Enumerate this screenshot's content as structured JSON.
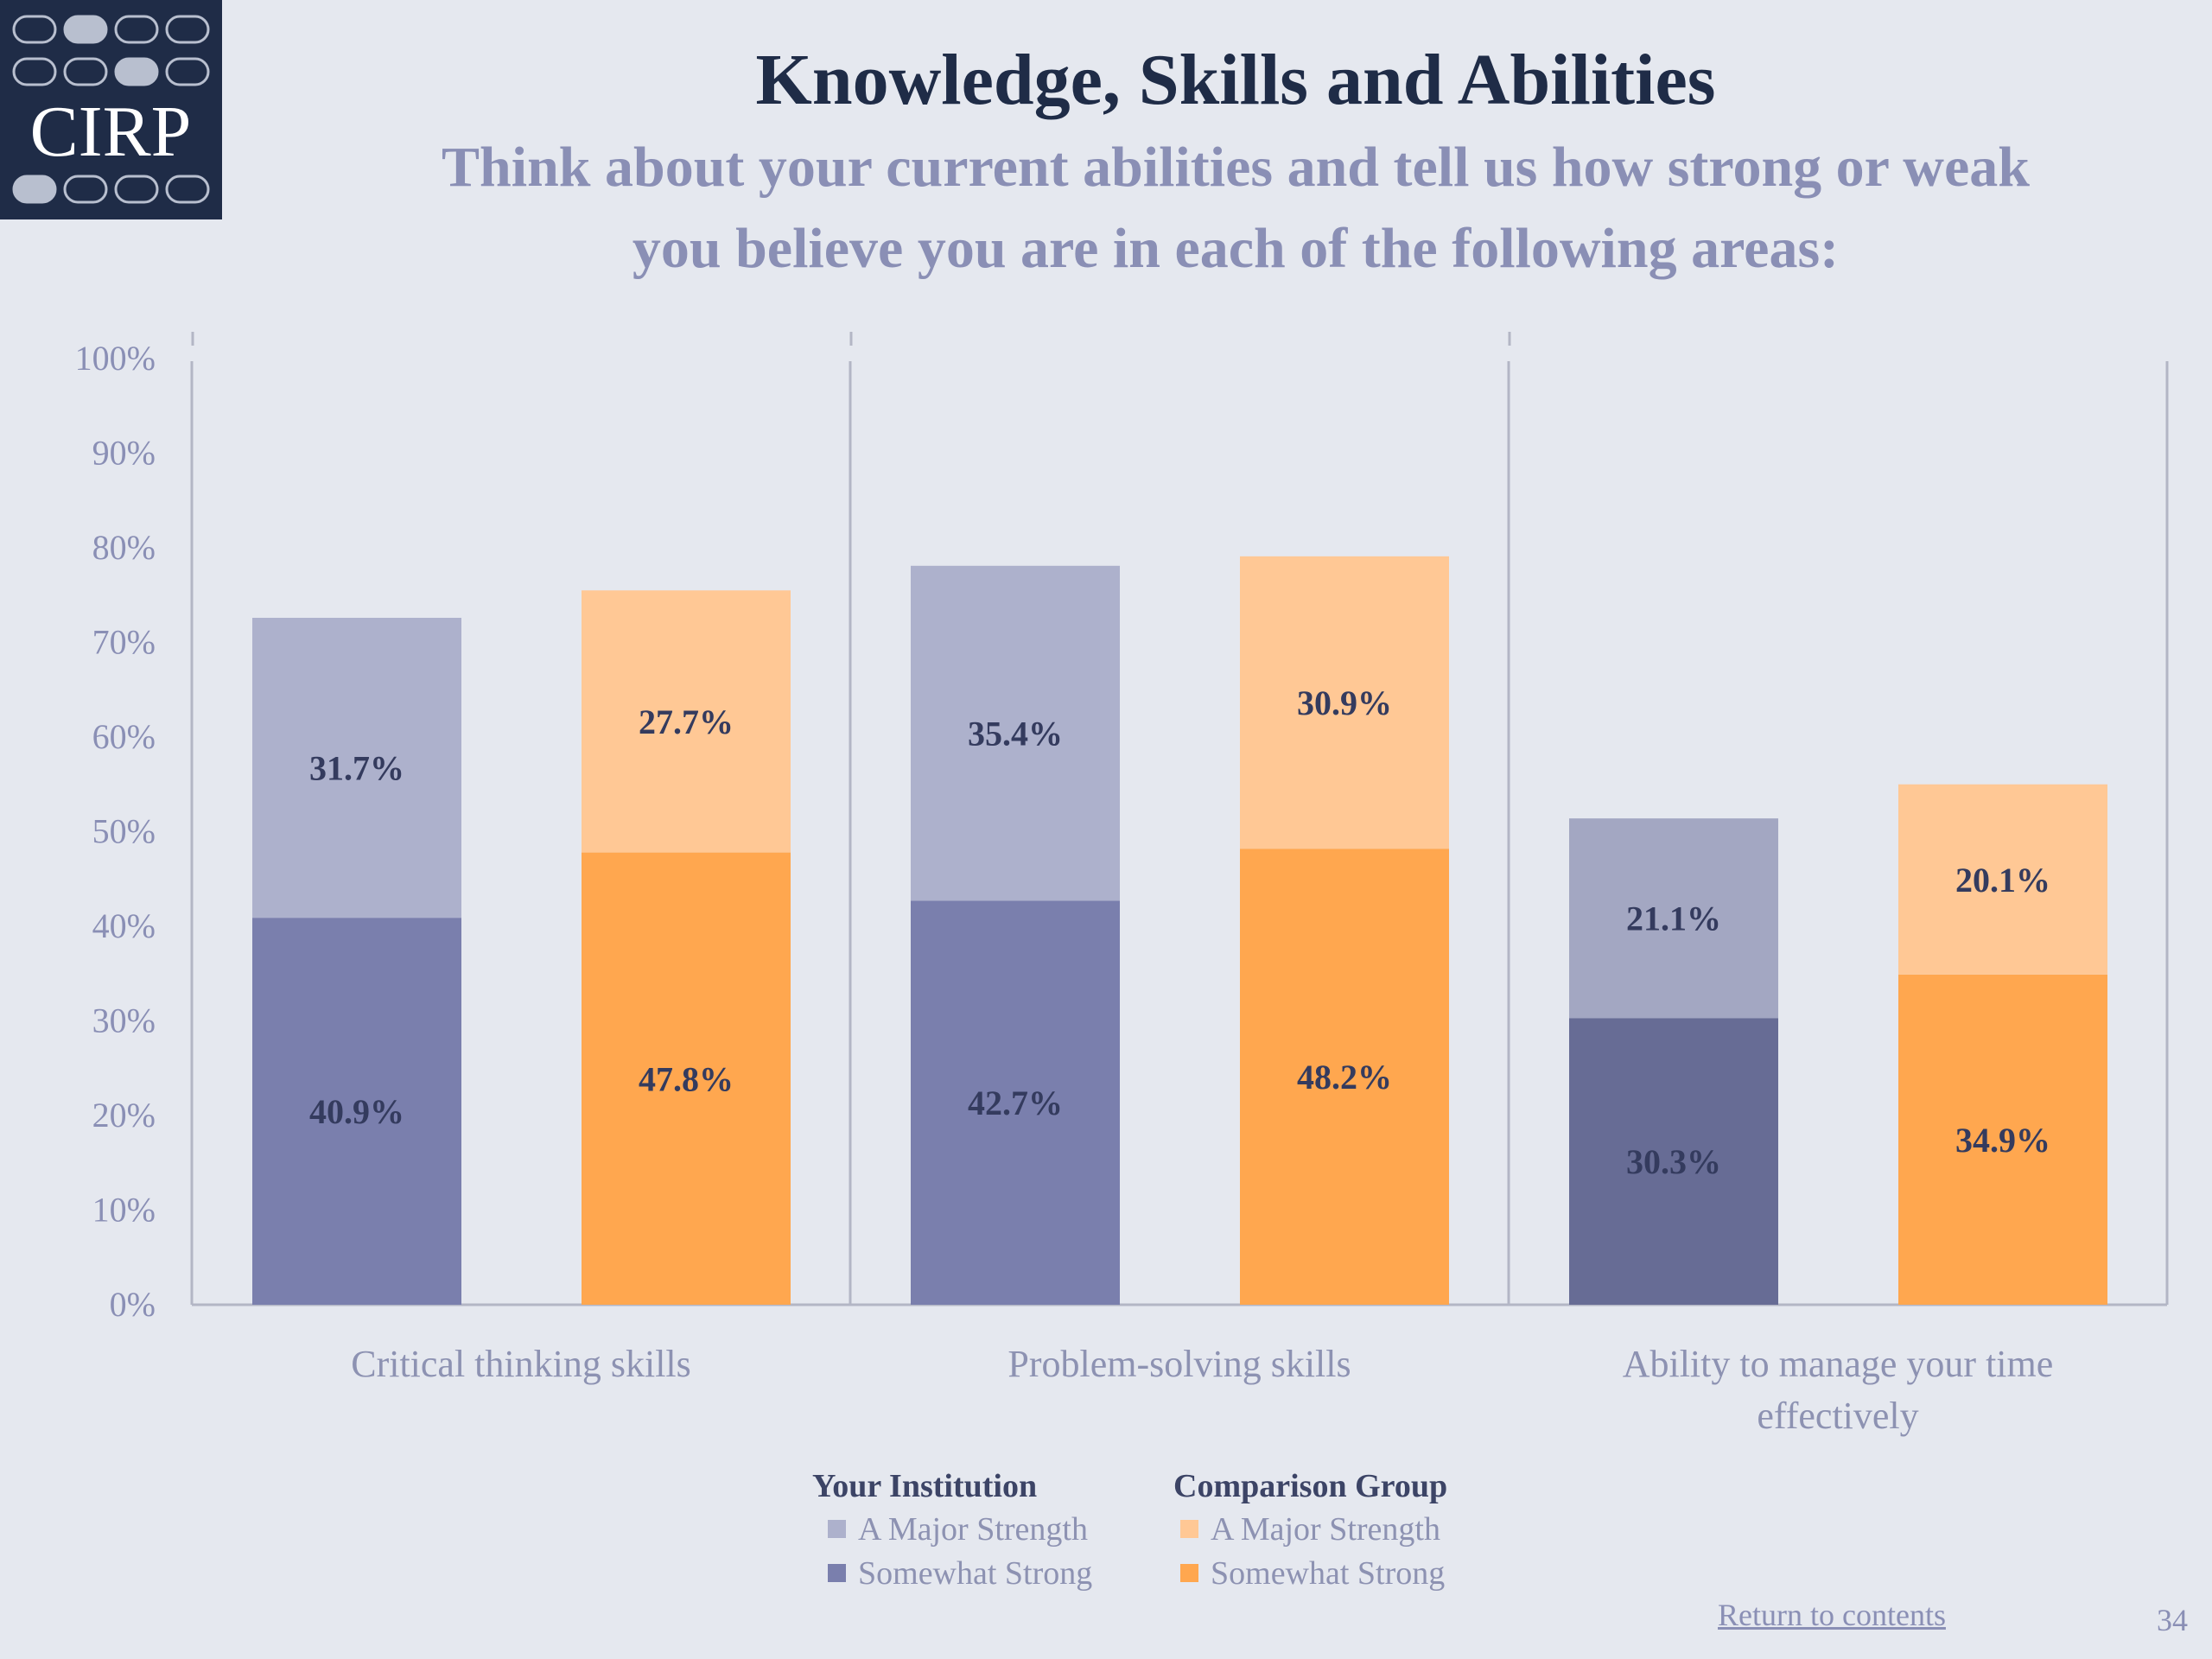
{
  "logo": {
    "text": "CIRP",
    "colors": {
      "background": "#1f2c47",
      "text": "#ffffff",
      "pill_outline": "#b8bfcf",
      "pill_fill": "#b8bfcf"
    },
    "pill_rows": [
      [
        0,
        1,
        0,
        0
      ],
      [
        0,
        0,
        1,
        0
      ],
      [
        1,
        0,
        0,
        0
      ]
    ]
  },
  "header": {
    "title": "Knowledge, Skills and Abilities",
    "subtitle_line1": "Think about your current abilities and tell us how strong or weak",
    "subtitle_line2": "you believe you are in each of the following areas:"
  },
  "chart_data": {
    "type": "bar",
    "stacked": true,
    "y_ticks": [
      "0%",
      "10%",
      "20%",
      "30%",
      "40%",
      "50%",
      "60%",
      "70%",
      "80%",
      "90%",
      "100%"
    ],
    "ylim": [
      0,
      100
    ],
    "grid": false,
    "categories": [
      {
        "label_lines": [
          "Critical thinking skills"
        ]
      },
      {
        "label_lines": [
          "Problem-solving skills"
        ]
      },
      {
        "label_lines": [
          "Ability to manage your time",
          "effectively"
        ]
      }
    ],
    "groups": [
      "Your Institution",
      "Comparison Group"
    ],
    "series": [
      {
        "group": "Your Institution",
        "name": "Somewhat Strong",
        "values": [
          40.9,
          42.7,
          30.3
        ],
        "labels": [
          "40.9%",
          "42.7%",
          "30.3%"
        ],
        "colors": [
          "#7a7fad",
          "#7a7fad",
          "#676c95"
        ]
      },
      {
        "group": "Your Institution",
        "name": "A Major Strength",
        "values": [
          31.7,
          35.4,
          21.1
        ],
        "labels": [
          "31.7%",
          "35.4%",
          "21.1%"
        ],
        "colors": [
          "#adb1cc",
          "#adb1cc",
          "#a3a7c2"
        ]
      },
      {
        "group": "Comparison Group",
        "name": "Somewhat Strong",
        "values": [
          47.8,
          48.2,
          34.9
        ],
        "labels": [
          "47.8%",
          "48.2%",
          "34.9%"
        ],
        "colors": [
          "#ffa74f",
          "#ffa74f",
          "#ffa74f"
        ]
      },
      {
        "group": "Comparison Group",
        "name": "A Major Strength",
        "values": [
          27.7,
          30.9,
          20.1
        ],
        "labels": [
          "27.7%",
          "30.9%",
          "20.1%"
        ],
        "colors": [
          "#ffc895",
          "#ffc895",
          "#ffc895"
        ]
      }
    ],
    "colors": {
      "axis": "#b3b6c5",
      "tick_text": "#8a8fb5",
      "category_text": "#8d92b2",
      "value_label": "#343b5e"
    },
    "legend": {
      "placement": "bottom-center",
      "groups": [
        {
          "title": "Your Institution",
          "items": [
            {
              "label": "A Major Strength",
              "color": "#adb1cc"
            },
            {
              "label": "Somewhat Strong",
              "color": "#7a7fad"
            }
          ]
        },
        {
          "title": "Comparison Group",
          "items": [
            {
              "label": "A Major Strength",
              "color": "#ffc895"
            },
            {
              "label": "Somewhat Strong",
              "color": "#ffa74f"
            }
          ]
        }
      ]
    }
  },
  "footer": {
    "return_link": "Return to contents",
    "page_number": "34"
  }
}
